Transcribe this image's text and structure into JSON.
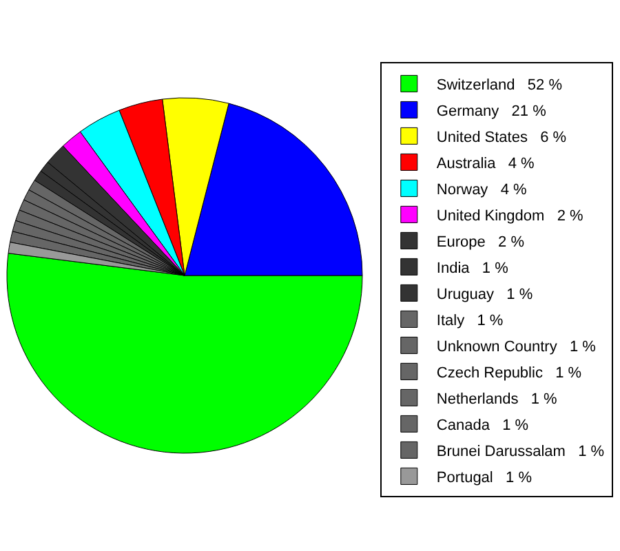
{
  "chart_data": {
    "type": "pie",
    "legend": "right",
    "categories": [
      "Switzerland",
      "Germany",
      "United States",
      "Australia",
      "Norway",
      "United Kingdom",
      "Europe",
      "India",
      "Uruguay",
      "Italy",
      "Unknown Country",
      "Czech Republic",
      "Netherlands",
      "Canada",
      "Brunei Darussalam",
      "Portugal"
    ],
    "values": [
      52,
      21,
      6,
      4,
      4,
      2,
      2,
      1,
      1,
      1,
      1,
      1,
      1,
      1,
      1,
      1
    ],
    "value_labels": [
      "52 %",
      "21 %",
      "6 %",
      "4 %",
      "4 %",
      "2 %",
      "2 %",
      "1 %",
      "1 %",
      "1 %",
      "1 %",
      "1 %",
      "1 %",
      "1 %",
      "1 %",
      "1 %"
    ],
    "colors": [
      "#00ff00",
      "#0000ff",
      "#ffff00",
      "#ff0000",
      "#00ffff",
      "#ff00ff",
      "#333333",
      "#333333",
      "#333333",
      "#666666",
      "#666666",
      "#666666",
      "#666666",
      "#666666",
      "#666666",
      "#999999"
    ]
  }
}
